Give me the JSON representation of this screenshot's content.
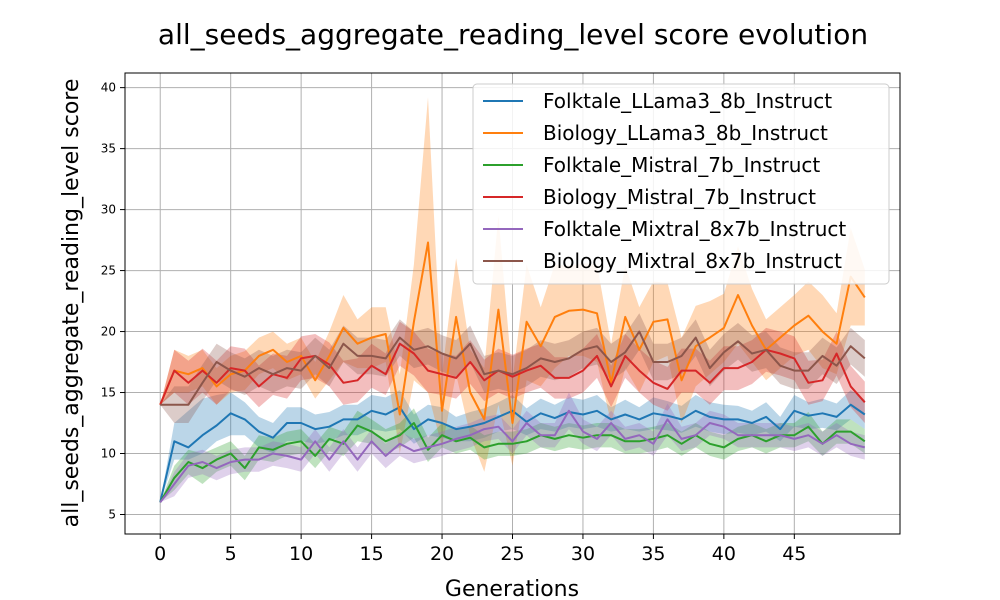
{
  "chart_data": {
    "type": "line",
    "title": "all_seeds_aggregate_reading_level score evolution",
    "xlabel": "Generations",
    "ylabel": "all_seeds_aggregate_reading_level score",
    "xlim": [
      -2.5,
      52.5
    ],
    "ylim": [
      3.4,
      41.2
    ],
    "xticks": [
      0,
      5,
      10,
      15,
      20,
      25,
      30,
      35,
      40,
      45
    ],
    "yticks": [
      5,
      10,
      15,
      20,
      25,
      30,
      35,
      40
    ],
    "grid": true,
    "legend_position": "top-right",
    "x": [
      0,
      1,
      2,
      3,
      4,
      5,
      6,
      7,
      8,
      9,
      10,
      11,
      12,
      13,
      14,
      15,
      16,
      17,
      18,
      19,
      20,
      21,
      22,
      23,
      24,
      25,
      26,
      27,
      28,
      29,
      30,
      31,
      32,
      33,
      34,
      35,
      36,
      37,
      38,
      39,
      40,
      41,
      42,
      43,
      44,
      45,
      46,
      47,
      48,
      49,
      50
    ],
    "series": [
      {
        "name": "Folktale_LLama3_8b_Instruct",
        "color": "#1f77b4",
        "values": [
          6.0,
          11.0,
          10.5,
          11.5,
          12.3,
          13.3,
          12.8,
          11.8,
          11.3,
          12.5,
          12.5,
          12.0,
          12.2,
          12.8,
          12.8,
          13.5,
          13.2,
          13.8,
          12.0,
          12.8,
          12.5,
          12.0,
          12.2,
          12.5,
          13.0,
          13.5,
          12.6,
          13.3,
          12.9,
          13.4,
          13.2,
          13.5,
          12.8,
          13.2,
          12.8,
          13.3,
          13.1,
          12.8,
          13.5,
          13.0,
          12.8,
          12.8,
          12.5,
          13.0,
          12.0,
          13.5,
          13.1,
          13.3,
          13.0,
          14.0,
          13.2
        ],
        "lower": [
          6.0,
          9.5,
          9.5,
          10.0,
          11.0,
          11.5,
          11.5,
          10.5,
          10.0,
          11.0,
          11.0,
          10.8,
          11.0,
          11.5,
          11.5,
          12.0,
          11.8,
          12.0,
          10.8,
          11.5,
          11.3,
          11.0,
          11.0,
          11.3,
          11.8,
          12.0,
          11.5,
          12.0,
          11.8,
          12.2,
          12.0,
          12.2,
          11.8,
          12.0,
          11.8,
          12.0,
          11.9,
          11.7,
          12.2,
          11.8,
          11.6,
          11.7,
          11.5,
          11.8,
          11.0,
          12.2,
          12.0,
          12.1,
          11.9,
          12.8,
          12.0
        ],
        "upper": [
          6.0,
          12.5,
          13.5,
          14.5,
          14.8,
          15.0,
          14.2,
          13.0,
          12.5,
          13.8,
          13.8,
          13.2,
          13.4,
          14.0,
          14.0,
          14.8,
          14.6,
          15.2,
          13.2,
          14.0,
          13.8,
          13.0,
          13.4,
          13.7,
          14.2,
          14.8,
          13.7,
          14.5,
          14.0,
          14.6,
          14.4,
          14.8,
          13.8,
          14.4,
          13.8,
          14.6,
          14.3,
          13.9,
          14.8,
          14.2,
          14.0,
          13.9,
          13.5,
          14.2,
          13.0,
          14.8,
          14.2,
          14.5,
          14.1,
          15.2,
          14.4
        ]
      },
      {
        "name": "Biology_LLama3_8b_Instruct",
        "color": "#ff7f0e",
        "values": [
          14.0,
          16.8,
          16.5,
          17.0,
          15.5,
          16.5,
          16.8,
          18.0,
          18.5,
          17.5,
          18.0,
          16.0,
          18.0,
          20.3,
          19.0,
          19.5,
          19.8,
          13.2,
          20.8,
          27.3,
          13.5,
          21.2,
          15.0,
          12.8,
          21.8,
          12.5,
          20.8,
          18.8,
          21.2,
          21.7,
          21.8,
          21.5,
          15.8,
          21.2,
          18.5,
          20.8,
          21.0,
          16.0,
          18.8,
          19.5,
          20.3,
          23.0,
          20.5,
          18.5,
          19.5,
          20.5,
          21.3,
          20.0,
          19.0,
          24.5,
          22.8
        ],
        "lower": [
          14.0,
          15.0,
          15.0,
          15.5,
          14.0,
          15.0,
          15.2,
          16.5,
          17.0,
          16.0,
          16.5,
          14.5,
          16.0,
          17.5,
          17.0,
          17.0,
          17.5,
          10.0,
          16.0,
          15.0,
          10.5,
          16.5,
          11.5,
          8.5,
          14.0,
          9.0,
          16.0,
          15.5,
          17.0,
          18.0,
          18.0,
          17.5,
          12.5,
          17.0,
          15.0,
          17.5,
          18.0,
          12.5,
          15.5,
          16.5,
          17.5,
          19.0,
          17.5,
          16.0,
          17.0,
          18.0,
          18.5,
          17.0,
          16.5,
          20.5,
          20.5
        ],
        "upper": [
          14.0,
          18.5,
          18.0,
          18.5,
          17.0,
          18.0,
          18.4,
          19.5,
          20.0,
          19.0,
          19.5,
          17.5,
          20.0,
          23.0,
          21.0,
          22.0,
          22.0,
          16.5,
          25.5,
          39.2,
          16.5,
          26.0,
          18.5,
          17.0,
          29.5,
          16.0,
          25.5,
          22.0,
          25.5,
          25.4,
          25.6,
          25.5,
          19.0,
          25.4,
          22.0,
          24.1,
          24.0,
          19.5,
          22.1,
          22.5,
          23.1,
          27.0,
          23.5,
          21.0,
          22.0,
          23.0,
          24.1,
          23.0,
          21.5,
          28.5,
          25.1
        ]
      },
      {
        "name": "Folktale_Mistral_7b_Instruct",
        "color": "#2ca02c",
        "values": [
          6.0,
          8.0,
          9.3,
          8.8,
          9.5,
          10.0,
          8.8,
          10.5,
          10.3,
          10.8,
          11.0,
          9.8,
          11.2,
          10.8,
          12.3,
          11.8,
          11.0,
          11.5,
          12.5,
          10.3,
          11.5,
          11.0,
          11.3,
          10.5,
          10.8,
          10.8,
          11.0,
          11.5,
          11.2,
          11.5,
          11.3,
          11.5,
          11.5,
          11.0,
          11.0,
          11.2,
          11.5,
          10.8,
          11.5,
          10.8,
          10.5,
          11.2,
          11.5,
          11.0,
          11.5,
          11.5,
          12.2,
          10.8,
          11.8,
          11.8,
          11.0
        ],
        "lower": [
          6.0,
          7.0,
          8.3,
          7.5,
          8.5,
          9.0,
          7.8,
          9.5,
          9.3,
          9.8,
          10.0,
          8.8,
          10.2,
          9.8,
          11.0,
          10.8,
          10.0,
          10.5,
          11.3,
          9.3,
          10.5,
          10.0,
          10.3,
          9.5,
          9.8,
          9.8,
          10.0,
          10.5,
          10.2,
          10.5,
          10.3,
          10.5,
          10.5,
          10.0,
          10.0,
          10.2,
          10.5,
          9.8,
          10.5,
          9.8,
          9.5,
          10.2,
          10.5,
          10.0,
          10.5,
          10.5,
          11.0,
          9.8,
          10.8,
          10.8,
          10.0
        ],
        "upper": [
          6.0,
          9.0,
          10.3,
          10.0,
          10.5,
          11.0,
          9.8,
          11.5,
          11.3,
          11.8,
          12.0,
          10.8,
          12.2,
          11.8,
          13.5,
          12.8,
          12.0,
          12.5,
          13.7,
          11.3,
          12.5,
          12.0,
          12.3,
          11.5,
          11.8,
          11.8,
          12.0,
          12.5,
          12.2,
          12.5,
          12.3,
          12.5,
          12.5,
          12.0,
          12.0,
          12.2,
          12.5,
          11.8,
          12.5,
          11.8,
          11.5,
          12.2,
          12.5,
          12.0,
          12.5,
          12.5,
          13.4,
          11.8,
          12.8,
          12.8,
          12.0
        ]
      },
      {
        "name": "Biology_Mistral_7b_Instruct",
        "color": "#d62728",
        "values": [
          14.0,
          16.8,
          15.8,
          16.8,
          15.8,
          17.0,
          16.8,
          15.5,
          16.5,
          16.2,
          17.8,
          18.0,
          17.3,
          15.8,
          16.0,
          17.2,
          16.5,
          19.0,
          18.2,
          16.8,
          16.5,
          16.2,
          17.5,
          16.0,
          16.8,
          16.3,
          16.8,
          17.2,
          16.2,
          16.2,
          16.8,
          18.0,
          15.5,
          18.0,
          16.8,
          15.8,
          15.3,
          16.8,
          16.8,
          15.8,
          17.0,
          17.0,
          17.5,
          18.5,
          18.2,
          17.8,
          15.8,
          16.0,
          18.2,
          15.5,
          14.2
        ],
        "lower": [
          14.0,
          15.0,
          14.0,
          15.0,
          14.0,
          15.2,
          15.0,
          13.8,
          14.8,
          14.5,
          16.0,
          16.2,
          15.5,
          14.0,
          14.2,
          15.4,
          14.8,
          17.2,
          16.4,
          15.0,
          14.8,
          14.5,
          15.7,
          14.3,
          15.0,
          14.5,
          15.0,
          15.4,
          14.5,
          14.5,
          15.0,
          16.2,
          13.8,
          16.2,
          15.0,
          14.0,
          13.5,
          15.0,
          15.0,
          14.0,
          15.2,
          15.2,
          15.7,
          16.7,
          16.4,
          16.0,
          14.0,
          14.3,
          16.4,
          13.8,
          12.5
        ],
        "upper": [
          14.0,
          18.5,
          17.6,
          18.6,
          17.6,
          18.8,
          18.6,
          17.2,
          18.2,
          18.0,
          19.6,
          19.8,
          19.1,
          17.6,
          17.8,
          19.0,
          18.2,
          20.8,
          20.0,
          18.6,
          18.2,
          18.0,
          19.3,
          17.7,
          18.6,
          18.1,
          18.6,
          19.0,
          17.9,
          17.9,
          18.6,
          19.8,
          17.2,
          19.8,
          18.6,
          17.6,
          17.1,
          18.6,
          18.6,
          17.6,
          18.8,
          18.8,
          19.3,
          20.3,
          20.0,
          19.6,
          17.6,
          17.7,
          20.0,
          17.2,
          15.9
        ]
      },
      {
        "name": "Folktale_Mixtral_8x7b_Instruct",
        "color": "#9467bd",
        "values": [
          6.0,
          7.5,
          9.0,
          9.3,
          8.8,
          9.3,
          9.5,
          9.5,
          10.0,
          9.8,
          9.5,
          11.0,
          9.5,
          11.0,
          9.5,
          11.0,
          9.8,
          10.8,
          10.2,
          10.5,
          10.8,
          11.2,
          11.5,
          12.0,
          12.2,
          11.0,
          12.5,
          11.5,
          11.5,
          13.5,
          11.8,
          11.2,
          12.5,
          11.2,
          11.5,
          10.8,
          12.8,
          11.2,
          11.5,
          12.5,
          12.2,
          11.5,
          11.5,
          11.5,
          11.5,
          11.2,
          11.5,
          10.8,
          11.5,
          10.8,
          10.5
        ],
        "lower": [
          6.0,
          6.5,
          8.0,
          8.3,
          7.8,
          8.3,
          8.5,
          8.5,
          9.0,
          8.8,
          8.5,
          10.0,
          8.5,
          10.0,
          8.5,
          10.0,
          8.8,
          9.8,
          9.2,
          9.5,
          9.8,
          10.2,
          10.5,
          11.0,
          11.2,
          10.0,
          11.5,
          10.5,
          10.5,
          12.0,
          10.8,
          10.2,
          11.5,
          10.2,
          10.5,
          9.8,
          11.5,
          10.2,
          10.5,
          11.5,
          11.2,
          10.5,
          10.5,
          10.5,
          10.5,
          10.2,
          10.5,
          9.8,
          10.5,
          9.8,
          9.5
        ],
        "upper": [
          6.0,
          8.5,
          10.0,
          10.3,
          9.8,
          10.3,
          10.5,
          10.5,
          11.0,
          10.8,
          10.5,
          12.0,
          10.5,
          12.0,
          10.5,
          12.0,
          10.8,
          11.8,
          11.2,
          11.5,
          11.8,
          12.2,
          12.5,
          13.0,
          13.2,
          12.0,
          13.5,
          12.5,
          12.5,
          15.0,
          12.8,
          12.2,
          13.5,
          12.2,
          12.5,
          11.8,
          14.1,
          12.2,
          12.5,
          13.5,
          13.2,
          12.5,
          12.5,
          12.5,
          12.5,
          12.2,
          12.5,
          11.8,
          12.5,
          11.8,
          11.5
        ]
      },
      {
        "name": "Biology_Mixtral_8x7b_Instruct",
        "color": "#8c564b",
        "values": [
          14.0,
          14.0,
          14.0,
          15.8,
          17.5,
          16.8,
          16.3,
          17.0,
          16.5,
          17.0,
          16.8,
          18.0,
          17.0,
          19.0,
          18.0,
          18.0,
          17.8,
          19.5,
          18.5,
          18.8,
          18.2,
          17.8,
          19.0,
          16.5,
          16.8,
          16.5,
          17.0,
          17.8,
          17.5,
          17.8,
          18.5,
          18.8,
          17.5,
          18.3,
          20.0,
          17.5,
          17.5,
          18.0,
          19.5,
          17.0,
          18.3,
          19.2,
          18.2,
          18.5,
          17.2,
          16.8,
          16.8,
          18.0,
          17.2,
          18.8,
          17.8
        ],
        "lower": [
          14.0,
          12.5,
          12.5,
          14.3,
          16.0,
          15.3,
          14.8,
          15.5,
          15.0,
          15.5,
          15.3,
          16.5,
          15.5,
          17.5,
          16.5,
          16.5,
          16.3,
          18.0,
          17.0,
          17.3,
          16.7,
          16.3,
          17.5,
          15.0,
          15.3,
          15.0,
          15.5,
          16.3,
          16.0,
          16.3,
          17.0,
          17.3,
          16.0,
          16.8,
          18.5,
          16.0,
          16.0,
          16.5,
          18.0,
          15.5,
          16.8,
          17.7,
          16.7,
          17.0,
          15.7,
          15.3,
          15.3,
          16.5,
          15.7,
          17.3,
          16.3
        ],
        "upper": [
          14.0,
          15.5,
          15.5,
          17.3,
          19.0,
          18.3,
          17.8,
          18.5,
          18.0,
          18.5,
          18.3,
          19.5,
          18.5,
          20.5,
          19.5,
          19.5,
          19.3,
          21.0,
          20.0,
          20.3,
          19.7,
          19.3,
          20.5,
          18.0,
          18.3,
          18.0,
          18.5,
          19.3,
          19.0,
          19.3,
          20.0,
          20.3,
          19.0,
          19.8,
          21.5,
          19.0,
          19.0,
          19.5,
          21.0,
          18.5,
          19.8,
          20.7,
          19.7,
          20.0,
          18.7,
          18.3,
          18.3,
          19.5,
          18.7,
          20.3,
          19.3
        ]
      }
    ]
  }
}
